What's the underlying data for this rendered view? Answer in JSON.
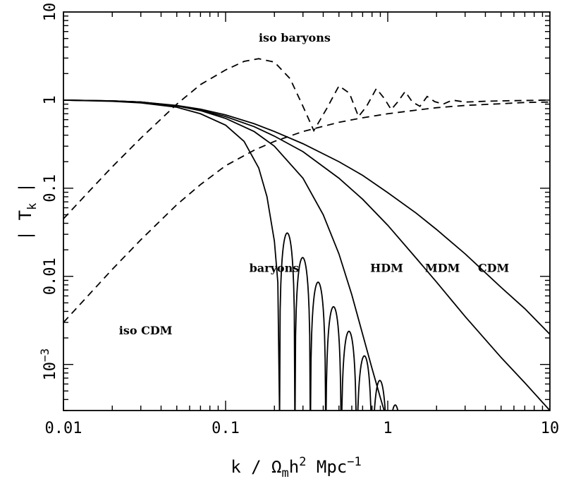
{
  "chart_data": {
    "type": "line",
    "xscale": "log",
    "yscale": "log",
    "xlim": [
      0.01,
      10
    ],
    "ylim": [
      0.0003,
      10
    ],
    "xlabel": {
      "main": "k / Ω",
      "sub": "m",
      "mid": "h",
      "sup": "2",
      "tail": " Mpc",
      "sup2": "−1"
    },
    "ylabel": {
      "main": "| T",
      "sub": "k",
      "tail": " |"
    },
    "xticks": [
      {
        "value": 0.01,
        "label": "0.01"
      },
      {
        "value": 0.1,
        "label": "0.1"
      },
      {
        "value": 1,
        "label": "1"
      },
      {
        "value": 10,
        "label": "10"
      }
    ],
    "yticks": [
      {
        "value": 0.001,
        "label": "10",
        "sup": "−3"
      },
      {
        "value": 0.01,
        "label": "0.01"
      },
      {
        "value": 0.1,
        "label": "0.1"
      },
      {
        "value": 1,
        "label": "1"
      },
      {
        "value": 10,
        "label": "10"
      }
    ],
    "annotations": [
      {
        "text": "iso baryons",
        "x": 0.16,
        "y": 4.6
      },
      {
        "text": "iso CDM",
        "x": 0.022,
        "y": 0.0022
      },
      {
        "text": "baryons",
        "x": 0.14,
        "y": 0.0112
      },
      {
        "text": "HDM",
        "x": 0.78,
        "y": 0.0112
      },
      {
        "text": "MDM",
        "x": 1.7,
        "y": 0.0112
      },
      {
        "text": "CDM",
        "x": 3.6,
        "y": 0.0112
      }
    ],
    "series": [
      {
        "key": "cdm",
        "style": "solid",
        "points": [
          [
            0.01,
            1.0
          ],
          [
            0.02,
            0.98
          ],
          [
            0.03,
            0.95
          ],
          [
            0.05,
            0.87
          ],
          [
            0.07,
            0.79
          ],
          [
            0.1,
            0.68
          ],
          [
            0.15,
            0.54
          ],
          [
            0.2,
            0.44
          ],
          [
            0.3,
            0.32
          ],
          [
            0.5,
            0.2
          ],
          [
            0.7,
            0.14
          ],
          [
            1,
            0.089
          ],
          [
            1.5,
            0.052
          ],
          [
            2,
            0.034
          ],
          [
            3,
            0.018
          ],
          [
            5,
            0.0075
          ],
          [
            7,
            0.0043
          ],
          [
            10,
            0.0022
          ]
        ]
      },
      {
        "key": "mdm",
        "style": "solid",
        "points": [
          [
            0.01,
            1.0
          ],
          [
            0.02,
            0.98
          ],
          [
            0.03,
            0.95
          ],
          [
            0.05,
            0.86
          ],
          [
            0.07,
            0.77
          ],
          [
            0.1,
            0.65
          ],
          [
            0.15,
            0.5
          ],
          [
            0.2,
            0.39
          ],
          [
            0.3,
            0.26
          ],
          [
            0.5,
            0.13
          ],
          [
            0.7,
            0.075
          ],
          [
            1,
            0.038
          ],
          [
            1.5,
            0.016
          ],
          [
            2,
            0.0086
          ],
          [
            3,
            0.0035
          ],
          [
            5,
            0.0012
          ],
          [
            7,
            0.00062
          ],
          [
            10,
            0.0003
          ]
        ]
      },
      {
        "key": "hdm",
        "style": "solid",
        "points": [
          [
            0.01,
            1.0
          ],
          [
            0.02,
            0.98
          ],
          [
            0.03,
            0.95
          ],
          [
            0.05,
            0.86
          ],
          [
            0.07,
            0.76
          ],
          [
            0.1,
            0.62
          ],
          [
            0.15,
            0.44
          ],
          [
            0.2,
            0.3
          ],
          [
            0.3,
            0.13
          ],
          [
            0.4,
            0.05
          ],
          [
            0.5,
            0.018
          ],
          [
            0.6,
            0.0062
          ],
          [
            0.7,
            0.0022
          ],
          [
            0.8,
            0.0009
          ],
          [
            0.9,
            0.00042
          ],
          [
            0.95,
            0.0003
          ]
        ]
      },
      {
        "key": "baryons",
        "style": "solid",
        "k_zero": 0.22,
        "first_zero": 0.215,
        "zero_ratio": 1.245,
        "peak_amp": 0.04,
        "decay_power": 2.93,
        "n_lobes": 16,
        "envelope": [
          [
            0.01,
            1.0
          ],
          [
            0.02,
            0.97
          ],
          [
            0.03,
            0.93
          ],
          [
            0.05,
            0.83
          ],
          [
            0.07,
            0.7
          ],
          [
            0.1,
            0.52
          ],
          [
            0.13,
            0.34
          ],
          [
            0.16,
            0.17
          ],
          [
            0.18,
            0.08
          ],
          [
            0.2,
            0.025
          ],
          [
            0.21,
            0.0085
          ],
          [
            0.215,
            0.0003
          ]
        ]
      },
      {
        "key": "iso-cdm",
        "style": "dashed",
        "points": [
          [
            0.01,
            0.003
          ],
          [
            0.02,
            0.012
          ],
          [
            0.03,
            0.026
          ],
          [
            0.05,
            0.065
          ],
          [
            0.07,
            0.11
          ],
          [
            0.1,
            0.18
          ],
          [
            0.15,
            0.27
          ],
          [
            0.2,
            0.34
          ],
          [
            0.3,
            0.44
          ],
          [
            0.5,
            0.56
          ],
          [
            0.7,
            0.63
          ],
          [
            1,
            0.7
          ],
          [
            1.5,
            0.77
          ],
          [
            2,
            0.82
          ],
          [
            3,
            0.87
          ],
          [
            5,
            0.91
          ],
          [
            7,
            0.94
          ],
          [
            10,
            0.95
          ]
        ]
      },
      {
        "key": "iso-baryons",
        "style": "dashed",
        "points": [
          [
            0.01,
            0.045
          ],
          [
            0.015,
            0.1
          ],
          [
            0.02,
            0.175
          ],
          [
            0.03,
            0.37
          ],
          [
            0.05,
            0.9
          ],
          [
            0.07,
            1.5
          ],
          [
            0.1,
            2.2
          ],
          [
            0.13,
            2.75
          ],
          [
            0.16,
            2.95
          ],
          [
            0.2,
            2.7
          ],
          [
            0.25,
            1.75
          ],
          [
            0.3,
            0.85
          ],
          [
            0.35,
            0.45
          ],
          [
            0.42,
            0.8
          ],
          [
            0.5,
            1.45
          ],
          [
            0.58,
            1.2
          ],
          [
            0.66,
            0.65
          ],
          [
            0.74,
            0.85
          ],
          [
            0.85,
            1.35
          ],
          [
            0.95,
            1.05
          ],
          [
            1.05,
            0.78
          ],
          [
            1.15,
            0.95
          ],
          [
            1.28,
            1.25
          ],
          [
            1.42,
            0.95
          ],
          [
            1.58,
            0.85
          ],
          [
            1.75,
            1.1
          ],
          [
            1.95,
            0.96
          ],
          [
            2.2,
            0.9
          ],
          [
            2.5,
            1.0
          ],
          [
            3,
            0.95
          ],
          [
            4,
            0.97
          ],
          [
            5,
            0.98
          ],
          [
            7,
            0.99
          ],
          [
            10,
            1.0
          ]
        ]
      }
    ]
  }
}
